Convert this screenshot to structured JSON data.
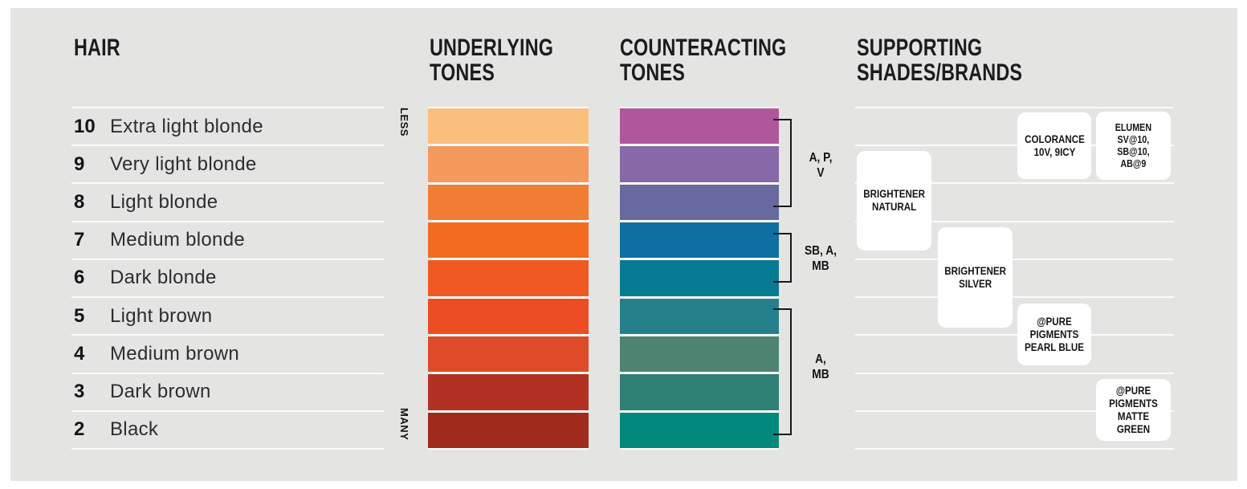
{
  "panel_bg": "#e4e4e3",
  "columns": {
    "hair": {
      "title": "HAIR",
      "rows": [
        {
          "level": "10",
          "label": "Extra light blonde"
        },
        {
          "level": "9",
          "label": "Very light blonde"
        },
        {
          "level": "8",
          "label": "Light blonde"
        },
        {
          "level": "7",
          "label": "Medium blonde"
        },
        {
          "level": "6",
          "label": "Dark blonde"
        },
        {
          "level": "5",
          "label": "Light brown"
        },
        {
          "level": "4",
          "label": "Medium brown"
        },
        {
          "level": "3",
          "label": "Dark brown"
        },
        {
          "level": "2",
          "label": "Black"
        }
      ]
    },
    "underlying": {
      "title": [
        "UNDERLYING",
        "TONES"
      ],
      "scale_top": "LESS",
      "scale_bottom": "MANY",
      "colors": [
        "#fabe7d",
        "#f5995c",
        "#f17d34",
        "#f26b21",
        "#f05922",
        "#ec4d22",
        "#dd4b28",
        "#b33122",
        "#a02b1d"
      ]
    },
    "counteracting": {
      "title": [
        "COUNTERACTING",
        "TONES"
      ],
      "colors": [
        "#b0579b",
        "#8968a8",
        "#68699e",
        "#0e70a2",
        "#077b92",
        "#26808b",
        "#4d8471",
        "#2f8176",
        "#03897b"
      ],
      "brackets": [
        {
          "label": [
            "A, P,",
            "V"
          ],
          "spans_levels": "10–8"
        },
        {
          "label": [
            "SB, A,",
            "MB"
          ],
          "spans_levels": "7–6"
        },
        {
          "label": [
            "A,",
            "MB"
          ],
          "spans_levels": "5–2"
        }
      ]
    },
    "supporting": {
      "title": [
        "SUPPORTING",
        "SHADES/BRANDS"
      ],
      "cards": [
        {
          "id": "colorance",
          "lines": [
            "COLORANCE",
            "10V, 9ICY"
          ]
        },
        {
          "id": "elumen",
          "lines": [
            "ELUMEN",
            "SV@10,",
            "SB@10,",
            "AB@9"
          ]
        },
        {
          "id": "brightener-natural",
          "lines": [
            "BRIGHTENER",
            "NATURAL"
          ]
        },
        {
          "id": "brightener-silver",
          "lines": [
            "BRIGHTENER",
            "SILVER"
          ]
        },
        {
          "id": "pure-pigments-pearl-blue",
          "lines": [
            "@PURE",
            "PIGMENTS",
            "PEARL BLUE"
          ]
        },
        {
          "id": "pure-pigments-matte-green",
          "lines": [
            "@PURE",
            "PIGMENTS",
            "MATTE GREEN"
          ]
        }
      ]
    }
  }
}
